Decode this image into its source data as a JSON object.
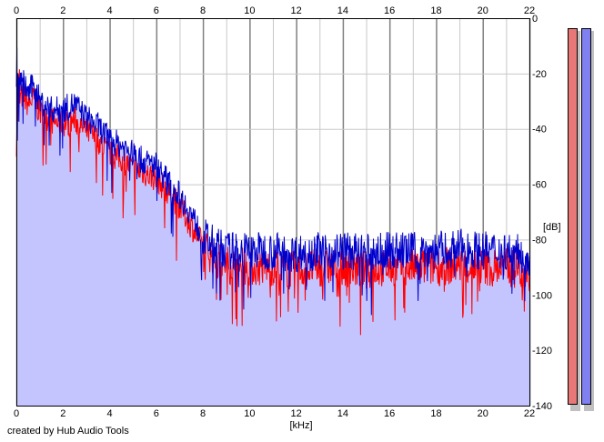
{
  "footer": {
    "credit": "created by Hub Audio Tools"
  },
  "chart_data": {
    "type": "area",
    "xlabel": "[kHz]",
    "ylabel": "[dB]",
    "xlim": [
      0,
      22
    ],
    "ylim": [
      -140,
      0
    ],
    "x_ticks": [
      0,
      2,
      4,
      6,
      8,
      10,
      12,
      14,
      16,
      18,
      20,
      22
    ],
    "y_ticks": [
      0,
      -20,
      -40,
      -60,
      -80,
      -100,
      -120,
      -140
    ],
    "grid": true,
    "colors": {
      "channel_red": "#ff0000",
      "channel_blue": "#0000cc",
      "fill": "#c4c4ff",
      "grid_major": "#808080",
      "grid_minor": "#c8c8c8"
    },
    "series": [
      {
        "color": "#0000cc",
        "x": [
          0,
          0.25,
          0.5,
          0.75,
          1,
          1.5,
          2,
          2.5,
          3,
          3.5,
          4,
          4.5,
          5,
          5.5,
          6,
          6.5,
          7,
          7.5,
          8,
          8.5,
          9,
          10,
          11,
          12,
          13,
          14,
          15,
          16,
          17,
          18,
          19,
          20,
          21,
          22
        ],
        "y": [
          -28,
          -22,
          -27,
          -24,
          -30,
          -33,
          -33,
          -31,
          -36,
          -39,
          -44,
          -46,
          -49,
          -52,
          -53,
          -59,
          -64,
          -71,
          -79,
          -82,
          -84,
          -84,
          -84,
          -85,
          -84,
          -84,
          -85,
          -84,
          -84,
          -84,
          -83,
          -84,
          -84,
          -86
        ]
      },
      {
        "color": "#ff0000",
        "x": [
          0,
          0.25,
          0.5,
          0.75,
          1,
          1.5,
          2,
          2.5,
          3,
          3.5,
          4,
          4.5,
          5,
          5.5,
          6,
          6.5,
          7,
          7.5,
          8,
          8.5,
          9,
          10,
          11,
          12,
          13,
          14,
          15,
          16,
          17,
          18,
          19,
          20,
          21,
          22
        ],
        "y": [
          -32,
          -28,
          -31,
          -29,
          -34,
          -37,
          -38,
          -37,
          -41,
          -44,
          -49,
          -51,
          -54,
          -56,
          -58,
          -63,
          -68,
          -75,
          -82,
          -87,
          -89,
          -90,
          -90,
          -91,
          -90,
          -90,
          -91,
          -90,
          -90,
          -90,
          -89,
          -90,
          -90,
          -92
        ]
      }
    ],
    "level_meters": [
      {
        "color": "#e87878"
      },
      {
        "color": "#8080f0"
      }
    ]
  }
}
